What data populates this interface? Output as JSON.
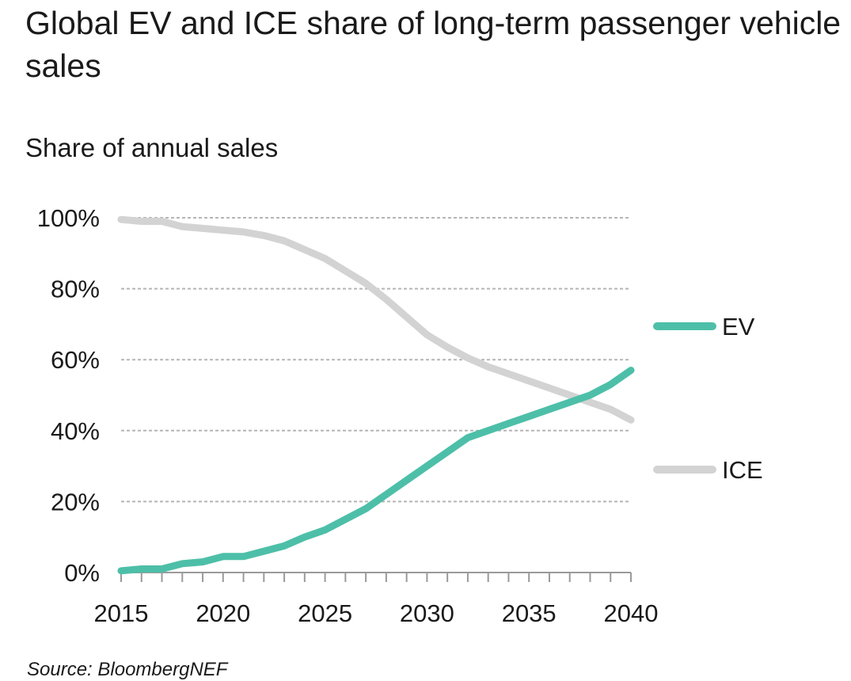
{
  "chart_data": {
    "type": "line",
    "title": "Global EV and ICE share of long-term passenger vehicle sales",
    "ylabel": "Share of annual sales",
    "xlabel": "",
    "source": "Source: BloombergNEF",
    "x": [
      2015,
      2016,
      2017,
      2018,
      2019,
      2020,
      2021,
      2022,
      2023,
      2024,
      2025,
      2026,
      2027,
      2028,
      2029,
      2030,
      2031,
      2032,
      2033,
      2034,
      2035,
      2036,
      2037,
      2038,
      2039,
      2040
    ],
    "series": [
      {
        "name": "EV",
        "color": "#4dbfa8",
        "values": [
          0.5,
          1,
          1,
          2.5,
          3,
          4.5,
          4.5,
          6,
          7.5,
          10,
          12,
          15,
          18,
          22,
          26,
          30,
          34,
          38,
          40,
          42,
          44,
          46,
          48,
          50,
          53,
          57
        ]
      },
      {
        "name": "ICE",
        "color": "#d3d3d3",
        "values": [
          99.5,
          99,
          99,
          97.5,
          97,
          96.5,
          96,
          95,
          93.5,
          91,
          88.5,
          85,
          81.5,
          77,
          72,
          67,
          63.5,
          60.5,
          58,
          56,
          54,
          52,
          50,
          48,
          46,
          43
        ]
      }
    ],
    "ylim": [
      0,
      100
    ],
    "yticks": [
      0,
      20,
      40,
      60,
      80,
      100
    ],
    "ytick_labels": [
      "0%",
      "20%",
      "40%",
      "60%",
      "80%",
      "100%"
    ],
    "xticks": [
      2015,
      2020,
      2025,
      2030,
      2035,
      2040
    ],
    "xtick_labels": [
      "2015",
      "2020",
      "2025",
      "2030",
      "2035",
      "2040"
    ],
    "grid": true,
    "legend": [
      {
        "label": "EV",
        "color": "#4dbfa8"
      },
      {
        "label": "ICE",
        "color": "#d3d3d3"
      }
    ],
    "legend_placement": "right"
  }
}
